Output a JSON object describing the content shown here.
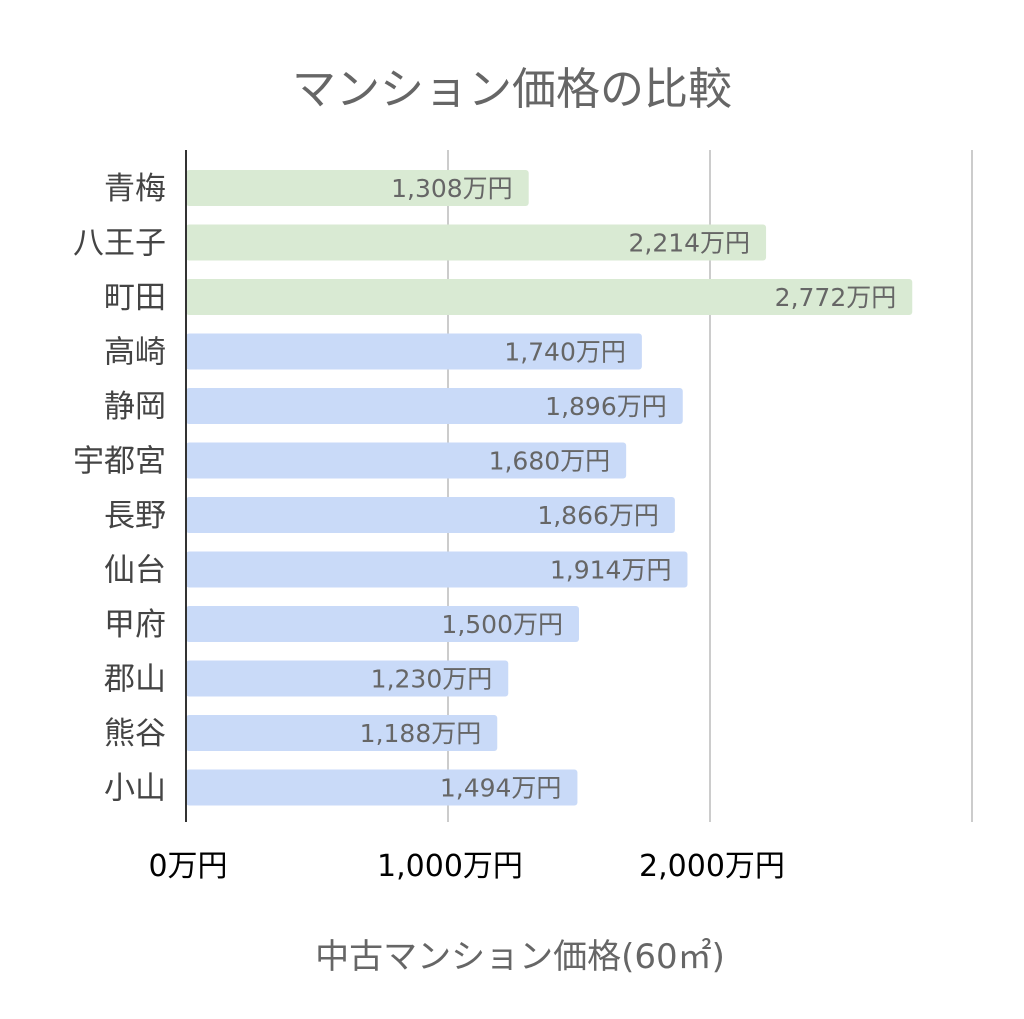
{
  "chart_data": {
    "type": "bar",
    "orientation": "horizontal",
    "title": "マンション価格の比較",
    "xlabel": "中古マンション価格(60㎡)",
    "ylabel": "",
    "xlim": [
      0,
      3000
    ],
    "x_ticks": [
      {
        "value": 0,
        "label": "0万円"
      },
      {
        "value": 1000,
        "label": "1,000万円"
      },
      {
        "value": 2000,
        "label": "2,000万円"
      },
      {
        "value": 3000,
        "label": ""
      }
    ],
    "grid": true,
    "categories": [
      "青梅",
      "八王子",
      "町田",
      "高崎",
      "静岡",
      "宇都宮",
      "長野",
      "仙台",
      "甲府",
      "郡山",
      "熊谷",
      "小山"
    ],
    "values": [
      1308,
      2214,
      2772,
      1740,
      1896,
      1680,
      1866,
      1914,
      1500,
      1230,
      1188,
      1494
    ],
    "data_labels": [
      "1,308万円",
      "2,214万円",
      "2,772万円",
      "1,740万円",
      "1,896万円",
      "1,680万円",
      "1,866万円",
      "1,914万円",
      "1,500万円",
      "1,230万円",
      "1,188万円",
      "1,494万円"
    ],
    "bar_colors": [
      "#d9ead3",
      "#d9ead3",
      "#d9ead3",
      "#c9daf8",
      "#c9daf8",
      "#c9daf8",
      "#c9daf8",
      "#c9daf8",
      "#c9daf8",
      "#c9daf8",
      "#c9daf8",
      "#c9daf8"
    ]
  }
}
